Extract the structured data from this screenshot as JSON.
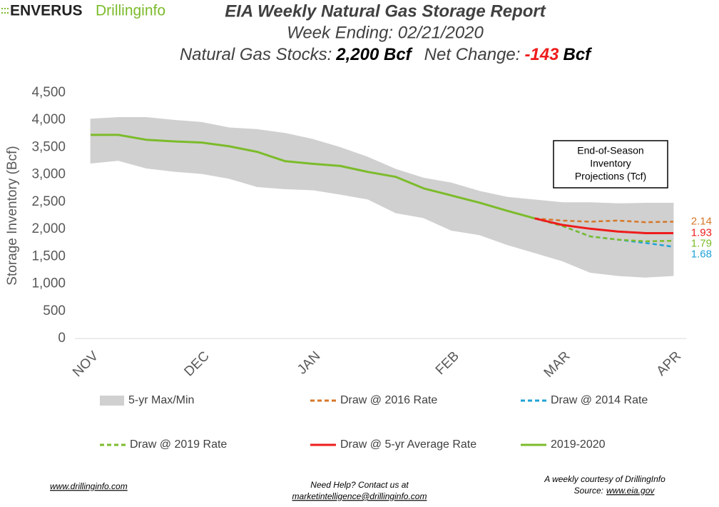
{
  "logo": {
    "brand": "ENVERUS",
    "product": "Drillinginfo"
  },
  "chart_data": {
    "type": "line",
    "title": "EIA Weekly Natural Gas Storage Report",
    "subtitle": "Week Ending: 02/21/2020",
    "stocks_label": "Natural Gas Stocks:",
    "stocks_value": "2,200 Bcf",
    "change_label": "Net Change:",
    "change_value": "-143",
    "change_unit": "Bcf",
    "ylabel": "Storage Inventory (Bcf)",
    "annotation": [
      "End-of-Season",
      "Inventory",
      "Projections (Tcf)"
    ],
    "categories": [
      "NOV",
      null,
      null,
      null,
      "DEC",
      null,
      null,
      null,
      "JAN",
      null,
      null,
      null,
      null,
      "FEB",
      null,
      null,
      null,
      "MAR",
      null,
      null,
      null,
      "APR"
    ],
    "ylim": [
      0,
      4500
    ],
    "yticks": [
      0,
      500,
      {
        "value": 1000,
        "label": "1,000"
      },
      {
        "value": 1500,
        "label": "1,500"
      },
      {
        "value": 2000,
        "label": "2,000"
      },
      {
        "value": 2500,
        "label": "2,500"
      },
      {
        "value": 3000,
        "label": "3,000"
      },
      {
        "value": 3500,
        "label": "3,500"
      },
      {
        "value": 4000,
        "label": "4,000"
      },
      {
        "value": 4500,
        "label": "4,500"
      }
    ],
    "band": {
      "name": "5-yr Max/Min",
      "color": "#d0d0d0",
      "upper": [
        4020,
        4050,
        4050,
        4000,
        3960,
        3860,
        3830,
        3760,
        3650,
        3500,
        3320,
        3100,
        2940,
        2850,
        2700,
        2590,
        2540,
        2490,
        2490,
        2470,
        2480,
        2480
      ],
      "lower": [
        3210,
        3260,
        3120,
        3060,
        3020,
        2930,
        2780,
        2740,
        2720,
        2640,
        2550,
        2300,
        2210,
        1980,
        1900,
        1720,
        1570,
        1420,
        1210,
        1150,
        1120,
        1150
      ]
    },
    "series": [
      {
        "name": "Draw @ 2016 Rate",
        "color": "#d5782a",
        "dashed": true,
        "values": [
          null,
          null,
          null,
          null,
          null,
          null,
          null,
          null,
          null,
          null,
          null,
          null,
          null,
          null,
          null,
          null,
          2200,
          2160,
          2140,
          2160,
          2130,
          2140
        ],
        "value_labels": [
          null,
          null,
          null,
          null,
          null,
          null,
          null,
          null,
          null,
          null,
          null,
          null,
          null,
          null,
          null,
          null,
          null,
          null,
          null,
          null,
          null,
          "2.14"
        ]
      },
      {
        "name": "Draw @ 2014 Rate",
        "color": "#1fa3d6",
        "dashed": true,
        "values": [
          null,
          null,
          null,
          null,
          null,
          null,
          null,
          null,
          null,
          null,
          null,
          null,
          null,
          null,
          null,
          null,
          2200,
          2060,
          1870,
          1810,
          1750,
          1680
        ],
        "value_labels": [
          null,
          null,
          null,
          null,
          null,
          null,
          null,
          null,
          null,
          null,
          null,
          null,
          null,
          null,
          null,
          null,
          null,
          null,
          null,
          null,
          null,
          "1.68"
        ]
      },
      {
        "name": "Draw @ 2019 Rate",
        "color": "#7cbb2b",
        "dashed": true,
        "values": [
          null,
          null,
          null,
          null,
          null,
          null,
          null,
          null,
          null,
          null,
          null,
          null,
          null,
          null,
          null,
          null,
          2200,
          2060,
          1870,
          1810,
          1780,
          1790
        ],
        "value_labels": [
          null,
          null,
          null,
          null,
          null,
          null,
          null,
          null,
          null,
          null,
          null,
          null,
          null,
          null,
          null,
          null,
          null,
          null,
          null,
          null,
          null,
          "1.79"
        ]
      },
      {
        "name": "Draw @ 5-yr Average Rate",
        "color": "#ee1c1c",
        "dashed": false,
        "values": [
          null,
          null,
          null,
          null,
          null,
          null,
          null,
          null,
          null,
          null,
          null,
          null,
          null,
          null,
          null,
          null,
          2200,
          2080,
          2010,
          1960,
          1930,
          1930
        ],
        "value_labels": [
          null,
          null,
          null,
          null,
          null,
          null,
          null,
          null,
          null,
          null,
          null,
          null,
          null,
          null,
          null,
          null,
          null,
          null,
          null,
          null,
          null,
          "1.93"
        ]
      },
      {
        "name": "2019-2020",
        "color": "#7cbb2b",
        "dashed": false,
        "values": [
          3730,
          3730,
          3640,
          3610,
          3590,
          3520,
          3420,
          3250,
          3200,
          3160,
          3050,
          2960,
          2750,
          2620,
          2490,
          2340,
          2200,
          null,
          null,
          null,
          null,
          null
        ]
      }
    ]
  },
  "footer": {
    "website": "www.drillinginfo.com",
    "help": "Need Help? Contact us at",
    "email": "marketintelligence@drillinginfo.com",
    "courtesy": "A weekly courtesy of DrillingInfo",
    "source_label": "Source:",
    "source_url": "www.eia.gov"
  }
}
